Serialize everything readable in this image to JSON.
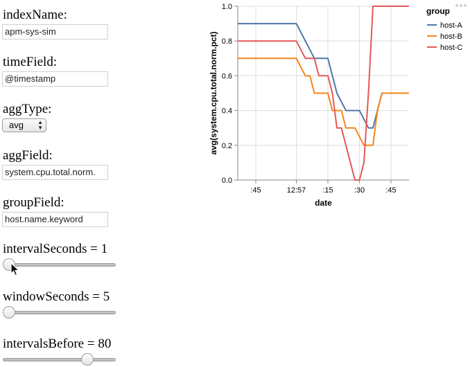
{
  "controls": {
    "index_name": {
      "label": "indexName:",
      "value": "apm-sys-sim"
    },
    "time_field": {
      "label": "timeField:",
      "value": "@timestamp"
    },
    "agg_type": {
      "label": "aggType:",
      "value": "avg"
    },
    "agg_field": {
      "label": "aggField:",
      "value": "system.cpu.total.norm."
    },
    "group_field": {
      "label": "groupField:",
      "value": "host.name.keyword"
    },
    "interval_seconds": {
      "label": "intervalSeconds = 1",
      "value": 1,
      "fraction": 0.0
    },
    "window_seconds": {
      "label": "windowSeconds = 5",
      "value": 5,
      "fraction": 0.0
    },
    "intervals_before": {
      "label": "intervalsBefore = 80",
      "value": 80,
      "fraction": 0.78
    }
  },
  "colors": {
    "host_a": "#4c78a8",
    "host_b": "#f58518",
    "host_c": "#e45756",
    "grid": "#dddddd",
    "axis": "#888888"
  },
  "chart_data": {
    "type": "line",
    "xlabel": "date",
    "ylabel": "avg(system.cpu.total.norm.pct)",
    "ylim": [
      0,
      1
    ],
    "y_ticks": [
      "0.0",
      "0.2",
      "0.4",
      "0.6",
      "0.8",
      "1.0"
    ],
    "x_ticks": [
      ":45",
      "12:57",
      ":15",
      ":30",
      ":45"
    ],
    "x_tick_positions": [
      -1.75,
      0.5,
      2.25,
      4.0,
      5.75
    ],
    "xlim": [
      -2.75,
      6.75
    ],
    "grid": true,
    "legend": {
      "title": "group",
      "position": "top-right"
    },
    "series": [
      {
        "name": "host-A",
        "color": "#4c78a8",
        "x": [
          -2.75,
          0.5,
          1.0,
          1.5,
          1.75,
          2.25,
          2.5,
          2.75,
          3.25,
          3.5,
          4.0,
          4.5,
          4.75,
          5.0,
          5.25,
          6.75
        ],
        "y": [
          0.9,
          0.9,
          0.8,
          0.7,
          0.7,
          0.7,
          0.6,
          0.5,
          0.4,
          0.4,
          0.4,
          0.3,
          0.3,
          0.4,
          0.5,
          0.5
        ]
      },
      {
        "name": "host-B",
        "color": "#f58518",
        "x": [
          -2.75,
          0.5,
          1.0,
          1.25,
          1.5,
          1.75,
          2.25,
          2.5,
          3.0,
          3.25,
          3.5,
          3.75,
          4.25,
          4.5,
          4.75,
          5.0,
          5.25,
          6.75
        ],
        "y": [
          0.7,
          0.7,
          0.6,
          0.6,
          0.5,
          0.5,
          0.5,
          0.4,
          0.4,
          0.3,
          0.3,
          0.3,
          0.2,
          0.2,
          0.2,
          0.4,
          0.5,
          0.5
        ]
      },
      {
        "name": "host-C",
        "color": "#e45756",
        "x": [
          -2.75,
          0.5,
          1.0,
          1.5,
          1.75,
          2.25,
          2.5,
          2.75,
          3.0,
          3.25,
          3.5,
          3.75,
          4.0,
          4.25,
          4.5,
          4.75,
          6.75
        ],
        "y": [
          0.8,
          0.8,
          0.7,
          0.7,
          0.6,
          0.6,
          0.5,
          0.3,
          0.3,
          0.2,
          0.1,
          0.0,
          0.0,
          0.1,
          0.5,
          1.0,
          1.0
        ]
      }
    ]
  }
}
